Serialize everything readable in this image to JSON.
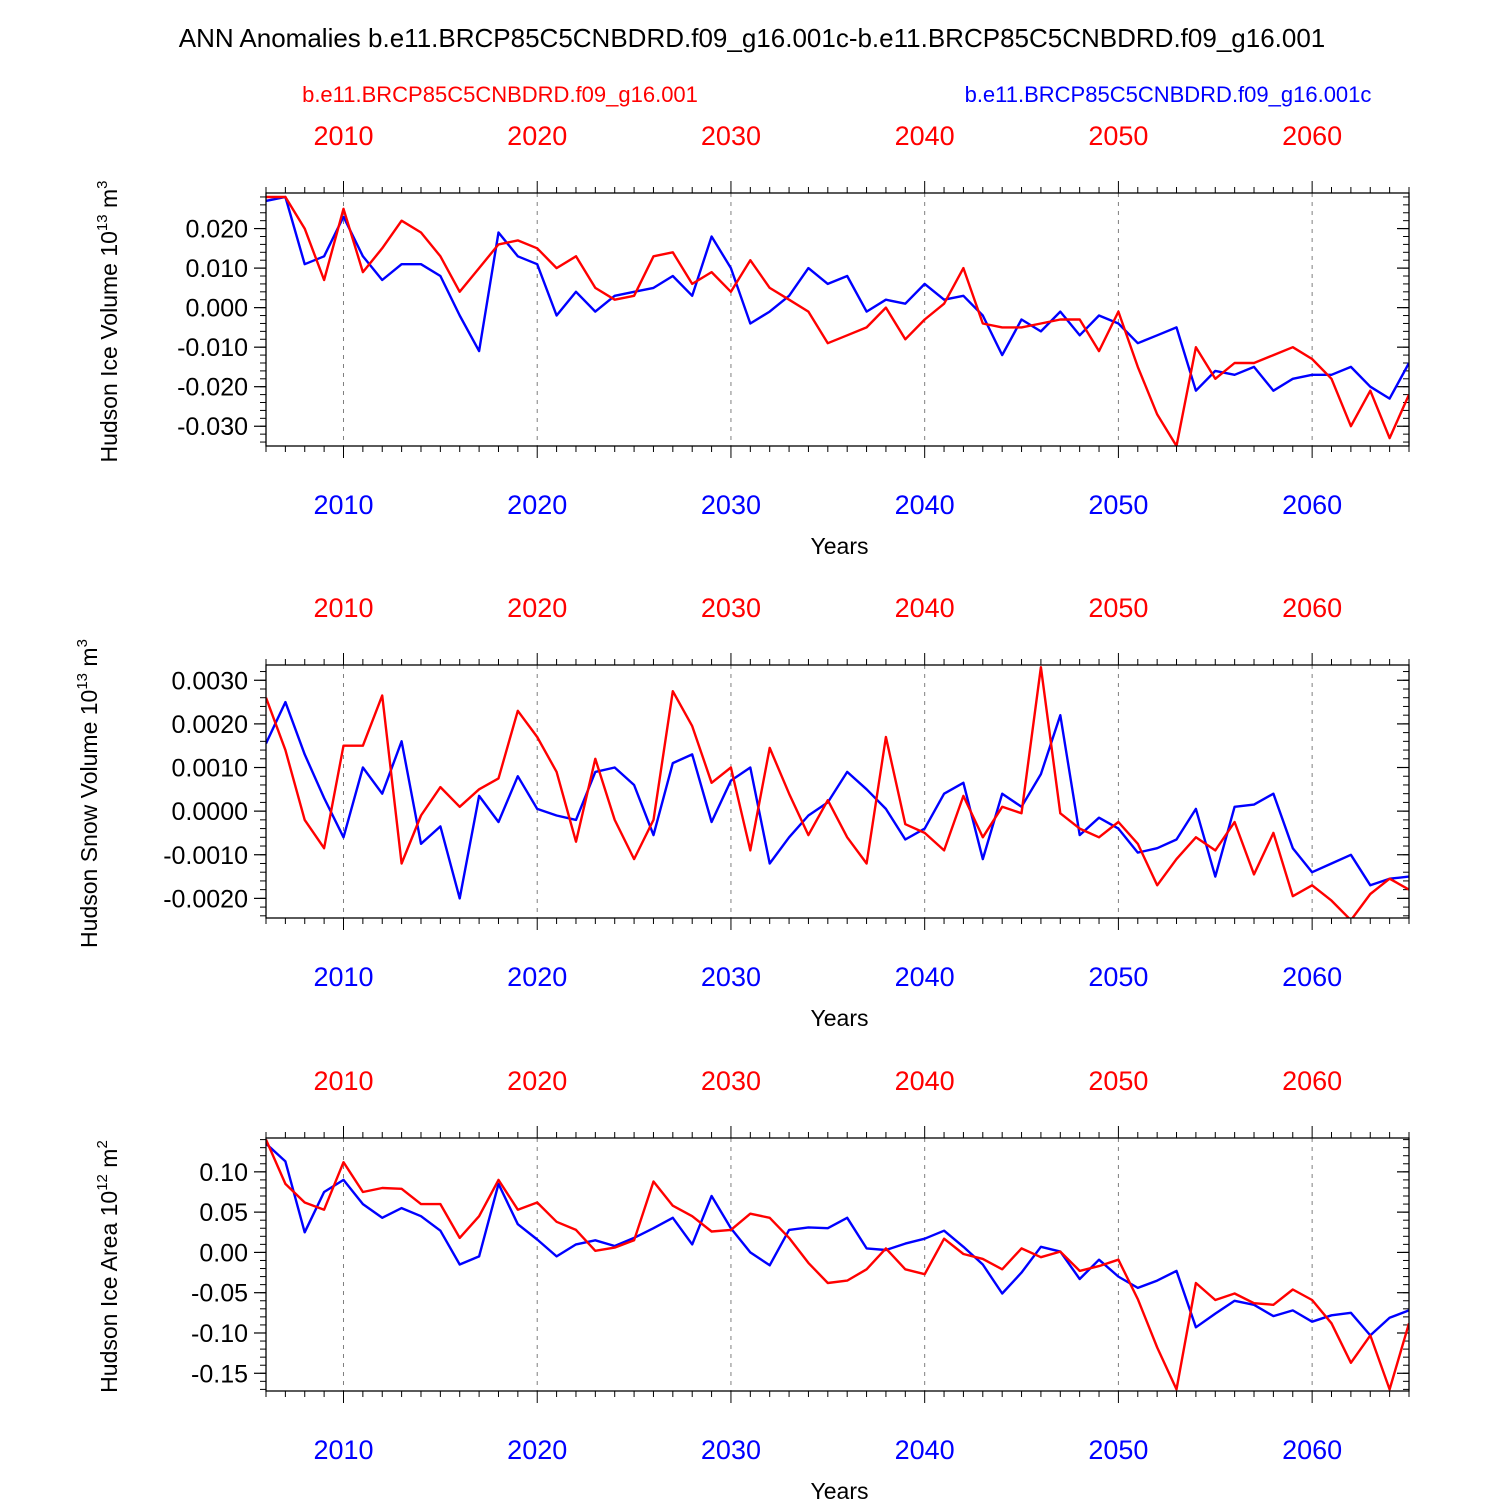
{
  "figure": {
    "title": "ANN Anomalies b.e11.BRCP85C5CNBDRD.f09_g16.001c-b.e11.BRCP85C5CNBDRD.f09_g16.001",
    "legend_left": "b.e11.BRCP85C5CNBDRD.f09_g16.001",
    "legend_right": "b.e11.BRCP85C5CNBDRD.f09_g16.001c",
    "colors": {
      "red": "#ff0000",
      "blue": "#0000ff",
      "axis": "#000000",
      "grid": "#7f7f7f"
    }
  },
  "chart_data": [
    {
      "type": "line",
      "ylabel_main": "Hudson Ice Volume 10",
      "ylabel_exp": "13",
      "ylabel_unit": " m",
      "ylabel_unit_exp": "3",
      "xlabel": "Years",
      "xlim": [
        2006,
        2065
      ],
      "ylim": [
        -0.035,
        0.029
      ],
      "xticks": [
        2010,
        2020,
        2030,
        2040,
        2050,
        2060
      ],
      "yticks": [
        0.02,
        0.01,
        0.0,
        -0.01,
        -0.02,
        -0.03
      ],
      "ytick_labels": [
        "0.020",
        "0.010",
        "0.000",
        "-0.010",
        "-0.020",
        "-0.030"
      ],
      "yminor": 0.002,
      "x": [
        2006,
        2007,
        2008,
        2009,
        2010,
        2011,
        2012,
        2013,
        2014,
        2015,
        2016,
        2017,
        2018,
        2019,
        2020,
        2021,
        2022,
        2023,
        2024,
        2025,
        2026,
        2027,
        2028,
        2029,
        2030,
        2031,
        2032,
        2033,
        2034,
        2035,
        2036,
        2037,
        2038,
        2039,
        2040,
        2041,
        2042,
        2043,
        2044,
        2045,
        2046,
        2047,
        2048,
        2049,
        2050,
        2051,
        2052,
        2053,
        2054,
        2055,
        2056,
        2057,
        2058,
        2059,
        2060,
        2061,
        2062,
        2063,
        2064,
        2065
      ],
      "series": [
        {
          "color": "#0000ff",
          "values": [
            0.027,
            0.028,
            0.011,
            0.013,
            0.023,
            0.013,
            0.007,
            0.011,
            0.011,
            0.008,
            -0.002,
            -0.011,
            0.019,
            0.013,
            0.011,
            -0.002,
            0.004,
            -0.001,
            0.003,
            0.004,
            0.005,
            0.008,
            0.003,
            0.018,
            0.01,
            -0.004,
            -0.001,
            0.003,
            0.01,
            0.006,
            0.008,
            -0.001,
            0.002,
            0.001,
            0.006,
            0.002,
            0.003,
            -0.002,
            -0.012,
            -0.003,
            -0.006,
            -0.001,
            -0.007,
            -0.002,
            -0.004,
            -0.009,
            -0.007,
            -0.005,
            -0.021,
            -0.016,
            -0.017,
            -0.015,
            -0.021,
            -0.018,
            -0.017,
            -0.017,
            -0.015,
            -0.02,
            -0.023,
            -0.014
          ]
        },
        {
          "color": "#ff0000",
          "values": [
            0.028,
            0.028,
            0.02,
            0.007,
            0.025,
            0.009,
            0.015,
            0.022,
            0.019,
            0.013,
            0.004,
            0.01,
            0.016,
            0.017,
            0.015,
            0.01,
            0.013,
            0.005,
            0.002,
            0.003,
            0.013,
            0.014,
            0.006,
            0.009,
            0.004,
            0.012,
            0.005,
            0.002,
            -0.001,
            -0.009,
            -0.007,
            -0.005,
            0.0,
            -0.008,
            -0.003,
            0.001,
            0.01,
            -0.004,
            -0.005,
            -0.005,
            -0.004,
            -0.003,
            -0.003,
            -0.011,
            -0.001,
            -0.015,
            -0.027,
            -0.035,
            -0.01,
            -0.018,
            -0.014,
            -0.014,
            -0.012,
            -0.01,
            -0.013,
            -0.018,
            -0.03,
            -0.021,
            -0.033,
            -0.022
          ]
        }
      ]
    },
    {
      "type": "line",
      "ylabel_main": "Hudson Snow Volume 10",
      "ylabel_exp": "13",
      "ylabel_unit": " m",
      "ylabel_unit_exp": "3",
      "xlabel": "Years",
      "xlim": [
        2006,
        2065
      ],
      "ylim": [
        -0.00245,
        0.00335
      ],
      "xticks": [
        2010,
        2020,
        2030,
        2040,
        2050,
        2060
      ],
      "yticks": [
        0.003,
        0.002,
        0.001,
        0.0,
        -0.001,
        -0.002
      ],
      "ytick_labels": [
        "0.0030",
        "0.0020",
        "0.0010",
        "0.0000",
        "-0.0010",
        "-0.0020"
      ],
      "yminor": 0.0002,
      "x": [
        2006,
        2007,
        2008,
        2009,
        2010,
        2011,
        2012,
        2013,
        2014,
        2015,
        2016,
        2017,
        2018,
        2019,
        2020,
        2021,
        2022,
        2023,
        2024,
        2025,
        2026,
        2027,
        2028,
        2029,
        2030,
        2031,
        2032,
        2033,
        2034,
        2035,
        2036,
        2037,
        2038,
        2039,
        2040,
        2041,
        2042,
        2043,
        2044,
        2045,
        2046,
        2047,
        2048,
        2049,
        2050,
        2051,
        2052,
        2053,
        2054,
        2055,
        2056,
        2057,
        2058,
        2059,
        2060,
        2061,
        2062,
        2063,
        2064,
        2065
      ],
      "series": [
        {
          "color": "#0000ff",
          "values": [
            0.00155,
            0.0025,
            0.0013,
            0.0003,
            -0.0006,
            0.001,
            0.0004,
            0.0016,
            -0.00075,
            -0.00035,
            -0.002,
            0.00035,
            -0.00025,
            0.0008,
            5e-05,
            -0.0001,
            -0.0002,
            0.0009,
            0.001,
            0.0006,
            -0.00055,
            0.0011,
            0.0013,
            -0.00025,
            0.0007,
            0.001,
            -0.0012,
            -0.0006,
            -0.0001,
            0.0002,
            0.0009,
            0.0005,
            5e-05,
            -0.00065,
            -0.0004,
            0.0004,
            0.00065,
            -0.0011,
            0.0004,
            0.0001,
            0.00085,
            0.0022,
            -0.00055,
            -0.00015,
            -0.0004,
            -0.00095,
            -0.00085,
            -0.00065,
            5e-05,
            -0.0015,
            0.0001,
            0.00015,
            0.0004,
            -0.00085,
            -0.0014,
            -0.0012,
            -0.001,
            -0.0017,
            -0.00155,
            -0.0015
          ]
        },
        {
          "color": "#ff0000",
          "values": [
            0.0026,
            0.0014,
            -0.0002,
            -0.00085,
            0.0015,
            0.0015,
            0.00265,
            -0.0012,
            -0.0001,
            0.00055,
            0.0001,
            0.0005,
            0.00075,
            0.0023,
            0.0017,
            0.0009,
            -0.0007,
            0.0012,
            -0.0002,
            -0.0011,
            -0.0002,
            0.00275,
            0.00195,
            0.00065,
            0.001,
            -0.0009,
            0.00145,
            0.0004,
            -0.00055,
            0.00025,
            -0.0006,
            -0.0012,
            0.0017,
            -0.0003,
            -0.0005,
            -0.0009,
            0.00035,
            -0.0006,
            0.0001,
            -5e-05,
            0.0033,
            -5e-05,
            -0.0004,
            -0.0006,
            -0.00025,
            -0.00075,
            -0.0017,
            -0.0011,
            -0.0006,
            -0.0009,
            -0.00025,
            -0.00145,
            -0.0005,
            -0.00195,
            -0.0017,
            -0.00205,
            -0.0025,
            -0.0019,
            -0.00155,
            -0.0018
          ]
        }
      ]
    },
    {
      "type": "line",
      "ylabel_main": "Hudson Ice Area 10",
      "ylabel_exp": "12",
      "ylabel_unit": " m",
      "ylabel_unit_exp": "2",
      "xlabel": "Years",
      "xlim": [
        2006,
        2065
      ],
      "ylim": [
        -0.172,
        0.142
      ],
      "xticks": [
        2010,
        2020,
        2030,
        2040,
        2050,
        2060
      ],
      "yticks": [
        0.1,
        0.05,
        0.0,
        -0.05,
        -0.1,
        -0.15
      ],
      "ytick_labels": [
        "0.10",
        "0.05",
        "0.00",
        "-0.05",
        "-0.10",
        "-0.15"
      ],
      "yminor": 0.01,
      "x": [
        2006,
        2007,
        2008,
        2009,
        2010,
        2011,
        2012,
        2013,
        2014,
        2015,
        2016,
        2017,
        2018,
        2019,
        2020,
        2021,
        2022,
        2023,
        2024,
        2025,
        2026,
        2027,
        2028,
        2029,
        2030,
        2031,
        2032,
        2033,
        2034,
        2035,
        2036,
        2037,
        2038,
        2039,
        2040,
        2041,
        2042,
        2043,
        2044,
        2045,
        2046,
        2047,
        2048,
        2049,
        2050,
        2051,
        2052,
        2053,
        2054,
        2055,
        2056,
        2057,
        2058,
        2059,
        2060,
        2061,
        2062,
        2063,
        2064,
        2065
      ],
      "series": [
        {
          "color": "#0000ff",
          "values": [
            0.135,
            0.113,
            0.025,
            0.075,
            0.09,
            0.06,
            0.043,
            0.055,
            0.045,
            0.027,
            -0.015,
            -0.005,
            0.085,
            0.035,
            0.016,
            -0.005,
            0.01,
            0.015,
            0.008,
            0.018,
            0.03,
            0.043,
            0.01,
            0.07,
            0.03,
            0.0,
            -0.016,
            0.028,
            0.031,
            0.03,
            0.043,
            0.005,
            0.003,
            0.011,
            0.017,
            0.027,
            0.007,
            -0.015,
            -0.051,
            -0.025,
            0.007,
            0.001,
            -0.033,
            -0.009,
            -0.03,
            -0.044,
            -0.035,
            -0.023,
            -0.093,
            -0.076,
            -0.06,
            -0.065,
            -0.079,
            -0.072,
            -0.086,
            -0.078,
            -0.075,
            -0.103,
            -0.081,
            -0.072
          ]
        },
        {
          "color": "#ff0000",
          "values": [
            0.14,
            0.085,
            0.062,
            0.053,
            0.112,
            0.075,
            0.08,
            0.079,
            0.06,
            0.06,
            0.018,
            0.045,
            0.09,
            0.053,
            0.062,
            0.038,
            0.028,
            0.002,
            0.006,
            0.015,
            0.088,
            0.058,
            0.045,
            0.026,
            0.028,
            0.048,
            0.043,
            0.018,
            -0.013,
            -0.038,
            -0.035,
            -0.021,
            0.005,
            -0.021,
            -0.027,
            0.017,
            -0.002,
            -0.008,
            -0.021,
            0.005,
            -0.006,
            0.001,
            -0.023,
            -0.017,
            -0.009,
            -0.058,
            -0.118,
            -0.17,
            -0.038,
            -0.059,
            -0.051,
            -0.063,
            -0.065,
            -0.046,
            -0.059,
            -0.088,
            -0.137,
            -0.103,
            -0.17,
            -0.088
          ]
        }
      ]
    }
  ]
}
